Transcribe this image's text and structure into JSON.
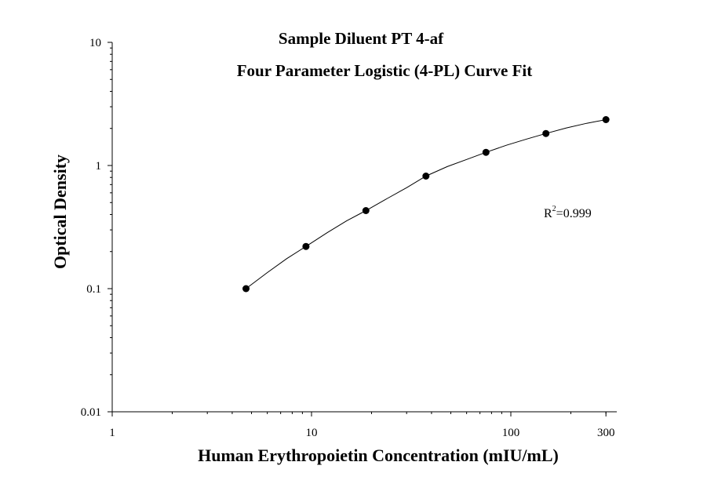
{
  "chart_data": {
    "type": "scatter",
    "title": "Sample Diluent PT 4-af",
    "subtitle": "Four Parameter Logistic (4-PL) Curve Fit",
    "xlabel": "Human Erythropoietin Concentration (mIU/mL)",
    "ylabel": "Optical Density",
    "xscale": "log",
    "yscale": "log",
    "xlim": [
      1,
      300
    ],
    "ylim": [
      0.01,
      10
    ],
    "x_ticks": [
      1,
      10,
      100,
      300
    ],
    "x_tick_labels": [
      "1",
      "10",
      "100",
      "300"
    ],
    "y_ticks": [
      0.01,
      0.1,
      1,
      10
    ],
    "y_tick_labels": [
      "0.01",
      "0.1",
      "1",
      "10"
    ],
    "grid": false,
    "series": [
      {
        "x": [
          4.69,
          9.38,
          18.75,
          37.5,
          75,
          150,
          300
        ],
        "y": [
          0.1,
          0.22,
          0.43,
          0.82,
          1.28,
          1.82,
          2.36
        ]
      }
    ],
    "fit_curve": {
      "type": "4-PL",
      "x": [
        4.69,
        6.0,
        7.5,
        9.38,
        12.0,
        15.0,
        18.75,
        24.0,
        30.0,
        37.5,
        48.0,
        60.0,
        75.0,
        95.0,
        120.0,
        150.0,
        190.0,
        240.0,
        300.0
      ],
      "y": [
        0.1,
        0.135,
        0.175,
        0.22,
        0.285,
        0.355,
        0.43,
        0.54,
        0.66,
        0.82,
        0.98,
        1.12,
        1.28,
        1.46,
        1.64,
        1.82,
        2.02,
        2.2,
        2.36
      ]
    },
    "annotation": {
      "base": "R",
      "sup": "2",
      "value": "=0.999"
    }
  }
}
